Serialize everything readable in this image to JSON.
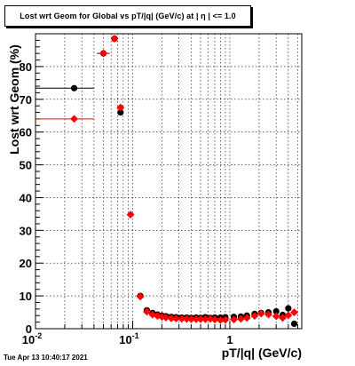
{
  "title": "Lost wrt Geom for Global vs pT/|q| (GeV/c) at |  η | <= 1.0",
  "timestamp": "Tue Apr 13 10:40:17 2021",
  "chart_data": {
    "type": "scatter",
    "title": "Lost wrt Geom for Global vs pT/|q| (GeV/c) at |  η | <= 1.0",
    "xlabel": "pT/|q| (GeV/c)",
    "ylabel": "Lost wrt Geom (%)",
    "xscale": "log",
    "xlim": [
      0.01,
      5.5
    ],
    "ylim": [
      0,
      90
    ],
    "grid": true,
    "x_tick_labels": [
      {
        "value": 0.01,
        "label": "10",
        "sup": "-2"
      },
      {
        "value": 0.1,
        "label": "10",
        "sup": "-1"
      },
      {
        "value": 1,
        "label": "1",
        "sup": ""
      }
    ],
    "y_tick_labels": [
      {
        "value": 0,
        "label": "0"
      },
      {
        "value": 10,
        "label": "10"
      },
      {
        "value": 20,
        "label": "20"
      },
      {
        "value": 30,
        "label": "30"
      },
      {
        "value": 40,
        "label": "40"
      },
      {
        "value": 50,
        "label": "50"
      },
      {
        "value": 60,
        "label": "60"
      },
      {
        "value": 70,
        "label": "70"
      },
      {
        "value": 80,
        "label": "80"
      }
    ],
    "series": [
      {
        "color": "#000000",
        "points": [
          {
            "x": 0.025,
            "y": 73.4,
            "xlo": 0.01,
            "xhi": 0.04
          },
          {
            "x": 0.05,
            "y": 84.0,
            "xlo": 0.043,
            "xhi": 0.058
          },
          {
            "x": 0.065,
            "y": 88.5,
            "xlo": 0.06,
            "xhi": 0.07
          },
          {
            "x": 0.075,
            "y": 66.0,
            "xlo": 0.071,
            "xhi": 0.079
          },
          {
            "x": 0.12,
            "y": 10.0,
            "xlo": 0.11,
            "xhi": 0.13
          },
          {
            "x": 0.14,
            "y": 5.6
          },
          {
            "x": 0.16,
            "y": 4.8
          },
          {
            "x": 0.18,
            "y": 4.3
          },
          {
            "x": 0.2,
            "y": 4.0
          },
          {
            "x": 0.22,
            "y": 3.8
          },
          {
            "x": 0.25,
            "y": 3.6
          },
          {
            "x": 0.28,
            "y": 3.5
          },
          {
            "x": 0.32,
            "y": 3.4
          },
          {
            "x": 0.36,
            "y": 3.4
          },
          {
            "x": 0.4,
            "y": 3.3
          },
          {
            "x": 0.45,
            "y": 3.4
          },
          {
            "x": 0.5,
            "y": 3.3
          },
          {
            "x": 0.56,
            "y": 3.5
          },
          {
            "x": 0.63,
            "y": 3.3
          },
          {
            "x": 0.7,
            "y": 3.4
          },
          {
            "x": 0.8,
            "y": 3.4
          },
          {
            "x": 0.9,
            "y": 3.5
          },
          {
            "x": 1.1,
            "y": 3.6
          },
          {
            "x": 1.3,
            "y": 3.7
          },
          {
            "x": 1.5,
            "y": 4.0
          },
          {
            "x": 1.8,
            "y": 4.5
          },
          {
            "x": 2.1,
            "y": 4.8
          },
          {
            "x": 2.5,
            "y": 5.0
          },
          {
            "x": 3.0,
            "y": 5.3
          },
          {
            "x": 3.5,
            "y": 4.2
          },
          {
            "x": 4.0,
            "y": 6.2
          },
          {
            "x": 4.6,
            "y": 1.5
          }
        ]
      },
      {
        "color": "#ff0000",
        "points": [
          {
            "x": 0.025,
            "y": 64.0,
            "xlo": 0.01,
            "xhi": 0.04
          },
          {
            "x": 0.05,
            "y": 84.0,
            "xlo": 0.043,
            "xhi": 0.058
          },
          {
            "x": 0.065,
            "y": 88.5,
            "xlo": 0.06,
            "xhi": 0.07
          },
          {
            "x": 0.075,
            "y": 67.5,
            "xlo": 0.071,
            "xhi": 0.079
          },
          {
            "x": 0.095,
            "y": 34.8,
            "xlo": 0.088,
            "xhi": 0.103
          },
          {
            "x": 0.12,
            "y": 9.8,
            "xlo": 0.11,
            "xhi": 0.13
          },
          {
            "x": 0.14,
            "y": 5.2
          },
          {
            "x": 0.16,
            "y": 4.3
          },
          {
            "x": 0.18,
            "y": 3.9
          },
          {
            "x": 0.2,
            "y": 3.6
          },
          {
            "x": 0.22,
            "y": 3.4
          },
          {
            "x": 0.25,
            "y": 3.2
          },
          {
            "x": 0.28,
            "y": 3.1
          },
          {
            "x": 0.32,
            "y": 3.0
          },
          {
            "x": 0.36,
            "y": 3.0
          },
          {
            "x": 0.4,
            "y": 2.9
          },
          {
            "x": 0.45,
            "y": 2.9
          },
          {
            "x": 0.5,
            "y": 2.9
          },
          {
            "x": 0.56,
            "y": 2.9
          },
          {
            "x": 0.63,
            "y": 3.0
          },
          {
            "x": 0.7,
            "y": 2.8
          },
          {
            "x": 0.8,
            "y": 2.6
          },
          {
            "x": 0.9,
            "y": 2.7
          },
          {
            "x": 1.1,
            "y": 2.8
          },
          {
            "x": 1.3,
            "y": 3.0
          },
          {
            "x": 1.5,
            "y": 3.3
          },
          {
            "x": 1.8,
            "y": 3.9
          },
          {
            "x": 2.1,
            "y": 4.6
          },
          {
            "x": 2.5,
            "y": 4.3
          },
          {
            "x": 3.0,
            "y": 3.8
          },
          {
            "x": 3.5,
            "y": 3.3
          },
          {
            "x": 4.0,
            "y": 4.1
          },
          {
            "x": 4.6,
            "y": 5.0
          }
        ]
      }
    ]
  }
}
